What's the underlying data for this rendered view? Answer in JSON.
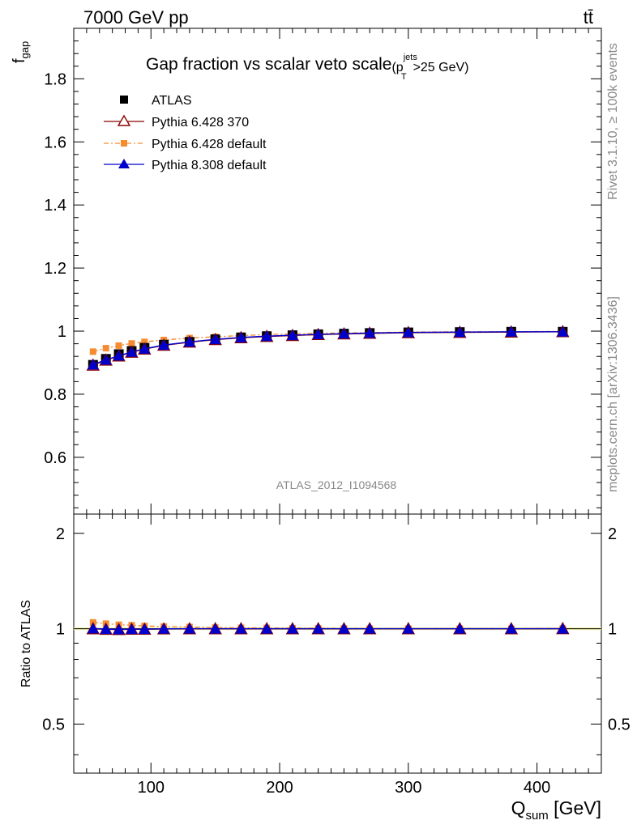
{
  "header": {
    "energy_label": "7000 GeV pp",
    "process_label": "tt̄",
    "analysis_id": "ATLAS_2012_I1094568"
  },
  "side_text": {
    "rivet": "Rivet 3.1.10, ≥ 100k events",
    "mcplots": "mcplots.cern.ch [arXiv:1306.3436]"
  },
  "chart_data": {
    "type": "line",
    "title_main": "Gap fraction vs scalar veto scale",
    "title_cut": "(p",
    "title_sup": "jets",
    "title_sub": "T",
    "title_tail": ">25 GeV)",
    "ylabel_main": "f",
    "ylabel_sub": "gap",
    "ratio_ylabel": "Ratio to ATLAS",
    "xlabel_main": "Q",
    "xlabel_sub": "sum",
    "xlabel_unit": " [GeV]",
    "xlim": [
      40,
      450
    ],
    "ylim": [
      0.42,
      1.96
    ],
    "ratio_ylim": [
      0.35,
      2.3
    ],
    "ratio_log_scale": true,
    "x_ticks": [
      "100",
      "200",
      "300",
      "400"
    ],
    "y_ticks": [
      "0.6",
      "0.8",
      "1",
      "1.2",
      "1.4",
      "1.6",
      "1.8"
    ],
    "ratio_ticks": [
      "0.5",
      "1",
      "2"
    ],
    "legend_position": "top-left",
    "x": [
      55,
      65,
      75,
      85,
      95,
      110,
      130,
      150,
      170,
      190,
      210,
      230,
      250,
      270,
      300,
      340,
      380,
      420
    ],
    "series": [
      {
        "name": "ATLAS",
        "color": "#000000",
        "marker": "square",
        "values": [
          0.893,
          0.912,
          0.927,
          0.937,
          0.947,
          0.957,
          0.966,
          0.974,
          0.98,
          0.984,
          0.987,
          0.99,
          0.992,
          0.994,
          0.996,
          0.997,
          0.998,
          0.998
        ]
      },
      {
        "name": "Pythia 6.428 370",
        "color": "#8B0000",
        "marker": "triangle-open",
        "values": [
          0.892,
          0.908,
          0.921,
          0.933,
          0.943,
          0.955,
          0.965,
          0.973,
          0.979,
          0.983,
          0.986,
          0.989,
          0.991,
          0.993,
          0.995,
          0.996,
          0.997,
          0.998
        ]
      },
      {
        "name": "Pythia 6.428 default",
        "color": "#F58C32",
        "marker": "square-small",
        "values": [
          0.935,
          0.946,
          0.954,
          0.961,
          0.966,
          0.972,
          0.978,
          0.982,
          0.986,
          0.989,
          0.991,
          0.993,
          0.994,
          0.995,
          0.997,
          0.998,
          0.998,
          0.999
        ]
      },
      {
        "name": "Pythia 8.308 default",
        "color": "#0000CC",
        "marker": "triangle",
        "values": [
          0.894,
          0.909,
          0.922,
          0.934,
          0.944,
          0.956,
          0.966,
          0.974,
          0.98,
          0.984,
          0.987,
          0.99,
          0.992,
          0.994,
          0.996,
          0.997,
          0.998,
          0.998
        ]
      }
    ]
  }
}
